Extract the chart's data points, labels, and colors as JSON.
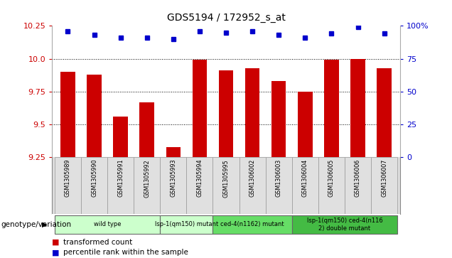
{
  "title": "GDS5194 / 172952_s_at",
  "samples": [
    "GSM1305989",
    "GSM1305990",
    "GSM1305991",
    "GSM1305992",
    "GSM1305993",
    "GSM1305994",
    "GSM1305995",
    "GSM1306002",
    "GSM1306003",
    "GSM1306004",
    "GSM1306005",
    "GSM1306006",
    "GSM1306007"
  ],
  "red_values": [
    9.9,
    9.88,
    9.56,
    9.67,
    9.33,
    9.99,
    9.91,
    9.93,
    9.83,
    9.75,
    9.99,
    10.0,
    9.93
  ],
  "blue_values": [
    96,
    93,
    91,
    91,
    90,
    96,
    95,
    96,
    93,
    91,
    94,
    99,
    94
  ],
  "ylim_left": [
    9.25,
    10.25
  ],
  "ylim_right": [
    0,
    100
  ],
  "yticks_left": [
    9.25,
    9.5,
    9.75,
    10.0,
    10.25
  ],
  "yticks_right": [
    0,
    25,
    50,
    75,
    100
  ],
  "grid_values": [
    9.5,
    9.75,
    10.0
  ],
  "bar_color": "#cc0000",
  "dot_color": "#0000cc",
  "groups": [
    {
      "label": "wild type",
      "start": 0,
      "end": 4,
      "color": "#ccffcc"
    },
    {
      "label": "lsp-1(qm150) mutant",
      "start": 4,
      "end": 6,
      "color": "#ccffcc"
    },
    {
      "label": "ced-4(n1162) mutant",
      "start": 6,
      "end": 9,
      "color": "#66dd66"
    },
    {
      "label": "lsp-1(qm150) ced-4(n116\n2) double mutant",
      "start": 9,
      "end": 13,
      "color": "#44bb44"
    }
  ],
  "xlabel_genotype": "genotype/variation",
  "legend_bar_label": "transformed count",
  "legend_dot_label": "percentile rank within the sample",
  "cell_bg": "#e0e0e0",
  "cell_border": "#aaaaaa"
}
